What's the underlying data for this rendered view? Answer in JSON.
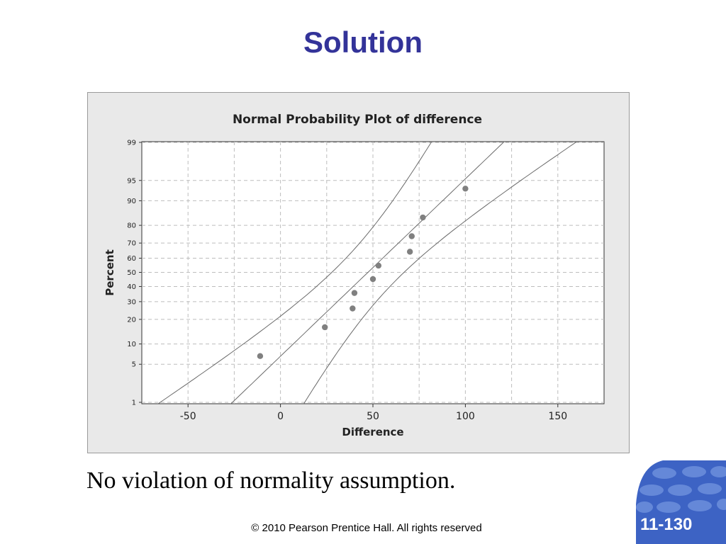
{
  "slide": {
    "title": "Solution",
    "conclusion": "No violation of normality assumption.",
    "copyright": "© 2010 Pearson Prentice Hall. All rights reserved",
    "slide_number": "11-130"
  },
  "colors": {
    "title": "#333399",
    "badge": "#3d63c4",
    "point": "#808080",
    "grid": "#bdbdbd"
  },
  "chart_data": {
    "type": "scatter",
    "subtype": "normal-probability-plot",
    "title": "Normal Probability Plot of difference",
    "xlabel": "Difference",
    "ylabel": "Percent",
    "xlim": [
      -75,
      175
    ],
    "xticks": [
      -50,
      0,
      50,
      100,
      150
    ],
    "yticks": [
      1,
      5,
      10,
      20,
      30,
      40,
      50,
      60,
      70,
      80,
      90,
      95,
      99
    ],
    "ylim": [
      1,
      99
    ],
    "grid": true,
    "points": [
      {
        "x": -11,
        "y": 6.7
      },
      {
        "x": 24,
        "y": 16.3
      },
      {
        "x": 39,
        "y": 25.9
      },
      {
        "x": 40,
        "y": 35.6
      },
      {
        "x": 50,
        "y": 45.2
      },
      {
        "x": 53,
        "y": 54.8
      },
      {
        "x": 70,
        "y": 64.4
      },
      {
        "x": 71,
        "y": 74.1
      },
      {
        "x": 77,
        "y": 83.7
      },
      {
        "x": 100,
        "y": 93.3
      }
    ],
    "fit_line": {
      "mean": 47.3,
      "sd": 31.5
    },
    "confidence_bands": "95% CI"
  }
}
